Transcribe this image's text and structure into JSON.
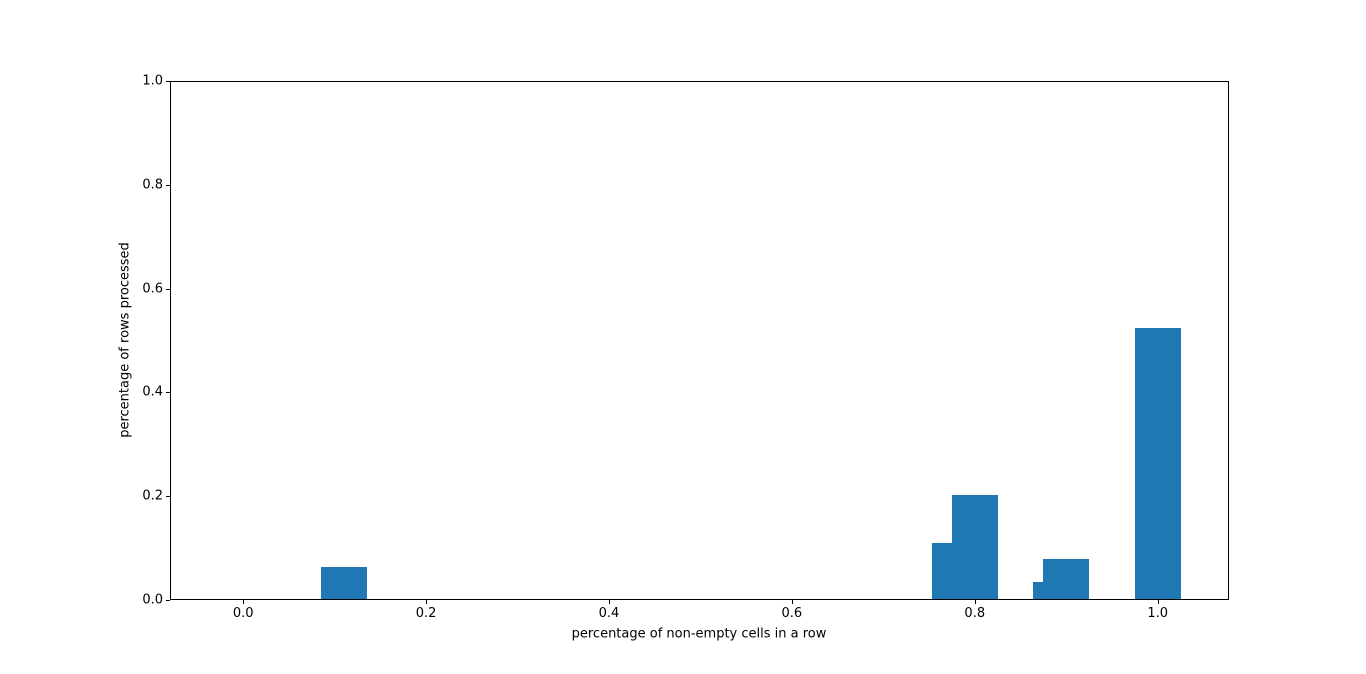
{
  "chart_data": {
    "type": "bar",
    "title": "",
    "xlabel": "percentage of non-empty cells in a row",
    "ylabel": "percentage of rows processed",
    "x": [
      0.11,
      0.778,
      0.8,
      0.889,
      0.9,
      1.0
    ],
    "values": [
      0.061,
      0.108,
      0.2,
      0.032,
      0.077,
      0.523
    ],
    "bar_width": 0.05,
    "bar_color": "#1f77b4",
    "xticks": [
      0.0,
      0.2,
      0.4,
      0.6,
      0.8,
      1.0
    ],
    "ytick_labels": [
      "0.0",
      "0.2",
      "0.4",
      "0.6",
      "0.8",
      "1.0"
    ],
    "xtick_labels": [
      "0.0",
      "0.2",
      "0.4",
      "0.6",
      "0.8",
      "1.0"
    ],
    "yticks": [
      0.0,
      0.2,
      0.4,
      0.6,
      0.8,
      1.0
    ],
    "xlim": [
      -0.08,
      1.078
    ],
    "ylim": [
      0.0,
      1.0
    ],
    "grid": false,
    "legend": null
  }
}
